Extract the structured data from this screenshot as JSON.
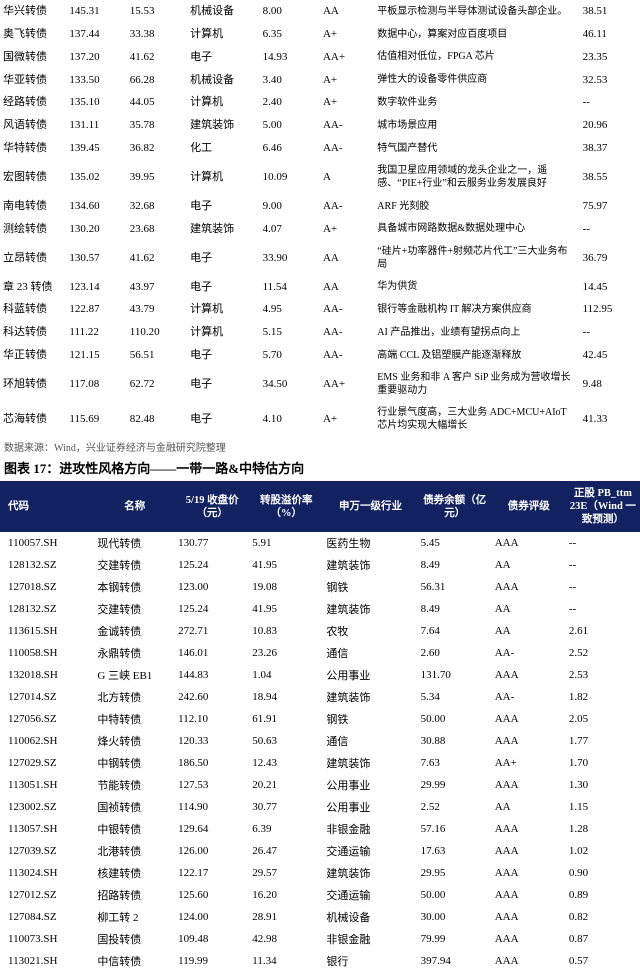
{
  "top_table": {
    "rows": [
      {
        "name": "华兴转债",
        "price": "145.31",
        "prem": "15.53",
        "ind": "机械设备",
        "bal": "8.00",
        "rat": "AA",
        "desc": "平板显示检测与半导体测试设备头部企业。",
        "last": "38.51"
      },
      {
        "name": "奥飞转债",
        "price": "137.44",
        "prem": "33.38",
        "ind": "计算机",
        "bal": "6.35",
        "rat": "A+",
        "desc": "数据中心，算案对应百度项目",
        "last": "46.11"
      },
      {
        "name": "国微转债",
        "price": "137.20",
        "prem": "41.62",
        "ind": "电子",
        "bal": "14.93",
        "rat": "AA+",
        "desc": "估值相对低位，FPGA 芯片",
        "last": "23.35"
      },
      {
        "name": "华亚转债",
        "price": "133.50",
        "prem": "66.28",
        "ind": "机械设备",
        "bal": "3.40",
        "rat": "A+",
        "desc": "弹性大的设备零件供应商",
        "last": "32.53"
      },
      {
        "name": "经路转债",
        "price": "135.10",
        "prem": "44.05",
        "ind": "计算机",
        "bal": "2.40",
        "rat": "A+",
        "desc": "数字软件业务",
        "last": "--"
      },
      {
        "name": "风语转债",
        "price": "131.11",
        "prem": "35.78",
        "ind": "建筑装饰",
        "bal": "5.00",
        "rat": "AA-",
        "desc": "城市场景应用",
        "last": "20.96"
      },
      {
        "name": "华特转债",
        "price": "139.45",
        "prem": "36.82",
        "ind": "化工",
        "bal": "6.46",
        "rat": "AA-",
        "desc": "特气国产替代",
        "last": "38.37"
      },
      {
        "name": "宏图转债",
        "price": "135.02",
        "prem": "39.95",
        "ind": "计算机",
        "bal": "10.09",
        "rat": "A",
        "desc": "我国卫星应用领域的龙头企业之一，遥感、“PIE+行业”和云服务业务发展良好",
        "last": "38.55"
      },
      {
        "name": "南电转债",
        "price": "134.60",
        "prem": "32.68",
        "ind": "电子",
        "bal": "9.00",
        "rat": "AA-",
        "desc": "ARF 光刻胶",
        "last": "75.97"
      },
      {
        "name": "测绘转债",
        "price": "130.20",
        "prem": "23.68",
        "ind": "建筑装饰",
        "bal": "4.07",
        "rat": "A+",
        "desc": "具备城市网路数据&数据处理中心",
        "last": "--"
      },
      {
        "name": "立昂转债",
        "price": "130.57",
        "prem": "41.62",
        "ind": "电子",
        "bal": "33.90",
        "rat": "AA",
        "desc": "“硅片+功率器件+射频芯片代工”三大业务布局",
        "last": "36.79"
      },
      {
        "name": "章 23 转债",
        "price": "123.14",
        "prem": "43.97",
        "ind": "电子",
        "bal": "11.54",
        "rat": "AA",
        "desc": "华为供货",
        "last": "14.45"
      },
      {
        "name": "科蓝转债",
        "price": "122.87",
        "prem": "43.79",
        "ind": "计算机",
        "bal": "4.95",
        "rat": "AA-",
        "desc": "银行等金融机构 IT 解决方案供应商",
        "last": "112.95"
      },
      {
        "name": "科达转债",
        "price": "111.22",
        "prem": "110.20",
        "ind": "计算机",
        "bal": "5.15",
        "rat": "AA-",
        "desc": "AI 产品推出，业绩有望拐点向上",
        "last": "--"
      },
      {
        "name": "华正转债",
        "price": "121.15",
        "prem": "56.51",
        "ind": "电子",
        "bal": "5.70",
        "rat": "AA-",
        "desc": "高端 CCL 及铝塑膜产能逐渐释放",
        "last": "42.45"
      },
      {
        "name": "环旭转债",
        "price": "117.08",
        "prem": "62.72",
        "ind": "电子",
        "bal": "34.50",
        "rat": "AA+",
        "desc": "EMS 业务和非 A 客户 SiP 业务成为营收增长重要驱动力",
        "last": "9.48"
      },
      {
        "name": "芯海转债",
        "price": "115.69",
        "prem": "82.48",
        "ind": "电子",
        "bal": "4.10",
        "rat": "A+",
        "desc": "行业景气度高，三大业务 ADC+MCU+AIoT 芯片均实现大幅增长",
        "last": "41.33"
      }
    ]
  },
  "source_note": "数据来源：Wind，兴业证券经济与金融研究院整理",
  "fig_title": "图表 17：进攻性风格方向——一带一路&中特估方向",
  "bottom_header": {
    "code": "代码",
    "name": "名称",
    "price": "5/19 收盘价（元）",
    "prem": "转股溢价率（%）",
    "ind": "申万一级行业",
    "bal": "债券余额（亿元）",
    "rat": "债券评级",
    "pb": "正股 PB_ttm 23E（Wind 一致预测）"
  },
  "bottom_table": {
    "rows": [
      {
        "code": "110057.SH",
        "name": "现代转债",
        "price": "130.77",
        "prem": "5.91",
        "ind": "医药生物",
        "bal": "5.45",
        "rat": "AAA",
        "pb": "--"
      },
      {
        "code": "128132.SZ",
        "name": "交建转债",
        "price": "125.24",
        "prem": "41.95",
        "ind": "建筑装饰",
        "bal": "8.49",
        "rat": "AA",
        "pb": "--"
      },
      {
        "code": "127018.SZ",
        "name": "本钢转债",
        "price": "123.00",
        "prem": "19.08",
        "ind": "钢铁",
        "bal": "56.31",
        "rat": "AAA",
        "pb": "--"
      },
      {
        "code": "128132.SZ",
        "name": "交建转债",
        "price": "125.24",
        "prem": "41.95",
        "ind": "建筑装饰",
        "bal": "8.49",
        "rat": "AA",
        "pb": "--"
      },
      {
        "code": "113615.SH",
        "name": "金诚转债",
        "price": "272.71",
        "prem": "10.83",
        "ind": "农牧",
        "bal": "7.64",
        "rat": "AA",
        "pb": "2.61"
      },
      {
        "code": "110058.SH",
        "name": "永鼎转债",
        "price": "146.01",
        "prem": "23.26",
        "ind": "通信",
        "bal": "2.60",
        "rat": "AA-",
        "pb": "2.52"
      },
      {
        "code": "132018.SH",
        "name": "G 三峡 EB1",
        "price": "144.83",
        "prem": "1.04",
        "ind": "公用事业",
        "bal": "131.70",
        "rat": "AAA",
        "pb": "2.53"
      },
      {
        "code": "127014.SZ",
        "name": "北方转债",
        "price": "242.60",
        "prem": "18.94",
        "ind": "建筑装饰",
        "bal": "5.34",
        "rat": "AA-",
        "pb": "1.82"
      },
      {
        "code": "127056.SZ",
        "name": "中特转债",
        "price": "112.10",
        "prem": "61.91",
        "ind": "钢铁",
        "bal": "50.00",
        "rat": "AAA",
        "pb": "2.05"
      },
      {
        "code": "110062.SH",
        "name": "烽火转债",
        "price": "120.33",
        "prem": "50.63",
        "ind": "通信",
        "bal": "30.88",
        "rat": "AAA",
        "pb": "1.77"
      },
      {
        "code": "127029.SZ",
        "name": "中钢转债",
        "price": "186.50",
        "prem": "12.43",
        "ind": "建筑装饰",
        "bal": "7.63",
        "rat": "AA+",
        "pb": "1.70"
      },
      {
        "code": "113051.SH",
        "name": "节能转债",
        "price": "127.53",
        "prem": "20.21",
        "ind": "公用事业",
        "bal": "29.99",
        "rat": "AAA",
        "pb": "1.30"
      },
      {
        "code": "123002.SZ",
        "name": "国祯转债",
        "price": "114.90",
        "prem": "30.77",
        "ind": "公用事业",
        "bal": "2.52",
        "rat": "AA",
        "pb": "1.15"
      },
      {
        "code": "113057.SH",
        "name": "中银转债",
        "price": "129.64",
        "prem": "6.39",
        "ind": "非银金融",
        "bal": "57.16",
        "rat": "AAA",
        "pb": "1.28"
      },
      {
        "code": "127039.SZ",
        "name": "北港转债",
        "price": "126.00",
        "prem": "26.47",
        "ind": "交通运输",
        "bal": "17.63",
        "rat": "AAA",
        "pb": "1.02"
      },
      {
        "code": "113024.SH",
        "name": "核建转债",
        "price": "122.17",
        "prem": "29.57",
        "ind": "建筑装饰",
        "bal": "29.95",
        "rat": "AAA",
        "pb": "0.90"
      },
      {
        "code": "127012.SZ",
        "name": "招路转债",
        "price": "125.60",
        "prem": "16.20",
        "ind": "交通运输",
        "bal": "50.00",
        "rat": "AAA",
        "pb": "0.89"
      },
      {
        "code": "127084.SZ",
        "name": "柳工转 2",
        "price": "124.00",
        "prem": "28.91",
        "ind": "机械设备",
        "bal": "30.00",
        "rat": "AAA",
        "pb": "0.82"
      },
      {
        "code": "110073.SH",
        "name": "国投转债",
        "price": "109.48",
        "prem": "42.98",
        "ind": "非银金融",
        "bal": "79.99",
        "rat": "AAA",
        "pb": "0.87"
      },
      {
        "code": "113021.SH",
        "name": "中信转债",
        "price": "119.99",
        "prem": "11.34",
        "ind": "银行",
        "bal": "397.94",
        "rat": "AAA",
        "pb": "0.57"
      }
    ]
  }
}
